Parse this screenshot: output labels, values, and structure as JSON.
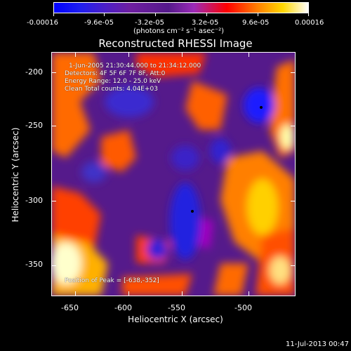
{
  "colorbar": {
    "tick_labels": [
      "-0.00016",
      "-9.6e-05",
      "-3.2e-05",
      "3.2e-05",
      "9.6e-05",
      "0.00016"
    ],
    "units_label": "(photons cm⁻² s⁻¹ asec⁻²)"
  },
  "plot": {
    "title": "Reconstructed RHESSI Image",
    "xlabel": "Heliocentric X (arcsec)",
    "ylabel": "Heliocentric Y (arcsec)",
    "x_ticks": [
      "-650",
      "-600",
      "-550",
      "-500"
    ],
    "y_ticks": [
      "-200",
      "-250",
      "-300",
      "-350"
    ]
  },
  "info": {
    "time_range": "1-Jun-2005 21:30:44.000 to 21:34:12.000",
    "detectors": "Detectors: 4F 5F 6F 7F 8F, Att:0",
    "energy": "Energy Range: 12.0 - 25.0 keV",
    "clean": "Clean    Total counts: 4.04E+03",
    "peak": "Position of Peak = [-638,-352]"
  },
  "footer": {
    "timestamp": "11-Jul-2013 00:47"
  },
  "colors": {
    "negative": "#0000ff",
    "mid": "#551a8b",
    "positive": "#ff0000",
    "high": "#ffd700",
    "max": "#ffffff"
  }
}
